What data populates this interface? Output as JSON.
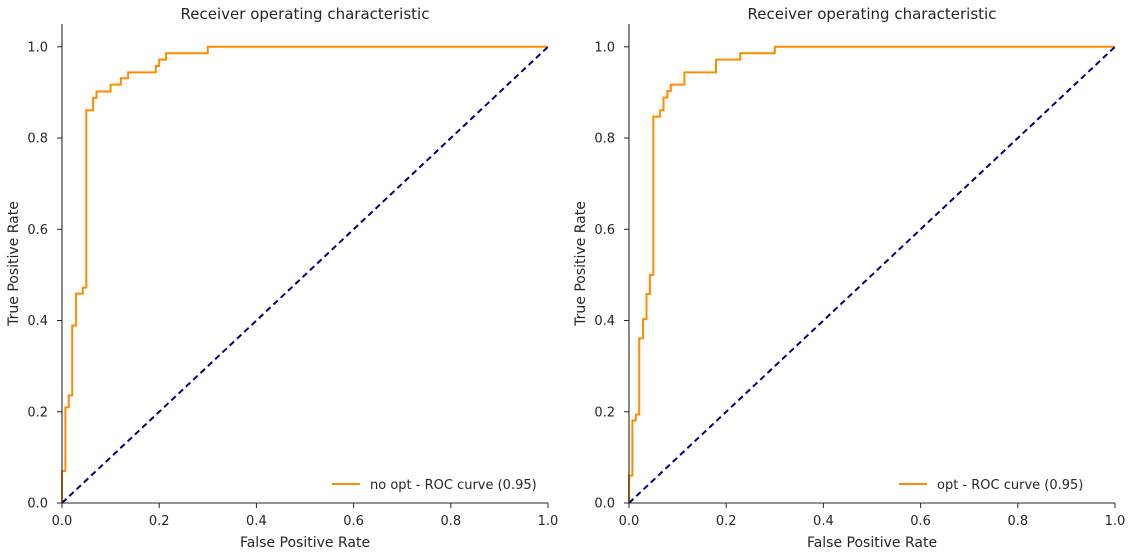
{
  "colors": {
    "roc": "#ff8c00",
    "diagonal": "#000080",
    "axes": "#262626"
  },
  "chart_data": [
    {
      "type": "line",
      "title": "Receiver operating characteristic",
      "xlabel": "False Positive Rate",
      "ylabel": "True Positive Rate",
      "xlim": [
        0.0,
        1.0
      ],
      "ylim": [
        0.0,
        1.05
      ],
      "xticks": [
        0.0,
        0.2,
        0.4,
        0.6,
        0.8,
        1.0
      ],
      "yticks": [
        0.0,
        0.2,
        0.4,
        0.6,
        0.8,
        1.0
      ],
      "xtick_labels": [
        "0.0",
        "0.2",
        "0.4",
        "0.6",
        "0.8",
        "1.0"
      ],
      "ytick_labels": [
        "0.0",
        "0.2",
        "0.4",
        "0.6",
        "0.8",
        "1.0"
      ],
      "grid": false,
      "legend_position": "lower-right",
      "series": [
        {
          "name": "no opt - ROC curve (0.95)",
          "color": "#ff8c00",
          "style": "solid",
          "x": [
            0.0,
            0.0,
            0.007,
            0.007,
            0.014,
            0.014,
            0.021,
            0.021,
            0.029,
            0.029,
            0.043,
            0.043,
            0.05,
            0.05,
            0.064,
            0.064,
            0.071,
            0.071,
            0.1,
            0.1,
            0.121,
            0.121,
            0.136,
            0.136,
            0.193,
            0.193,
            0.2,
            0.2,
            0.214,
            0.214,
            0.3,
            0.3,
            1.0
          ],
          "y": [
            0.0,
            0.07,
            0.07,
            0.21,
            0.21,
            0.236,
            0.236,
            0.389,
            0.389,
            0.459,
            0.459,
            0.472,
            0.472,
            0.861,
            0.861,
            0.888,
            0.888,
            0.902,
            0.902,
            0.917,
            0.917,
            0.931,
            0.931,
            0.944,
            0.944,
            0.958,
            0.958,
            0.972,
            0.972,
            0.986,
            0.986,
            1.0,
            1.0
          ]
        },
        {
          "name": "",
          "color": "#000080",
          "style": "dashed",
          "x": [
            0.0,
            1.0
          ],
          "y": [
            0.0,
            1.0
          ]
        }
      ]
    },
    {
      "type": "line",
      "title": "Receiver operating characteristic",
      "xlabel": "False Positive Rate",
      "ylabel": "True Positive Rate",
      "xlim": [
        0.0,
        1.0
      ],
      "ylim": [
        0.0,
        1.05
      ],
      "xticks": [
        0.0,
        0.2,
        0.4,
        0.6,
        0.8,
        1.0
      ],
      "yticks": [
        0.0,
        0.2,
        0.4,
        0.6,
        0.8,
        1.0
      ],
      "xtick_labels": [
        "0.0",
        "0.2",
        "0.4",
        "0.6",
        "0.8",
        "1.0"
      ],
      "ytick_labels": [
        "0.0",
        "0.2",
        "0.4",
        "0.6",
        "0.8",
        "1.0"
      ],
      "grid": false,
      "legend_position": "lower-right",
      "series": [
        {
          "name": "opt - ROC curve (0.95)",
          "color": "#ff8c00",
          "style": "solid",
          "x": [
            0.0,
            0.0,
            0.007,
            0.007,
            0.014,
            0.014,
            0.021,
            0.021,
            0.029,
            0.029,
            0.036,
            0.036,
            0.043,
            0.043,
            0.05,
            0.05,
            0.064,
            0.064,
            0.071,
            0.071,
            0.079,
            0.079,
            0.086,
            0.086,
            0.114,
            0.114,
            0.179,
            0.179,
            0.229,
            0.229,
            0.3,
            0.3,
            1.0
          ],
          "y": [
            0.0,
            0.06,
            0.06,
            0.181,
            0.181,
            0.194,
            0.194,
            0.361,
            0.361,
            0.403,
            0.403,
            0.458,
            0.458,
            0.5,
            0.5,
            0.847,
            0.847,
            0.861,
            0.861,
            0.889,
            0.889,
            0.903,
            0.903,
            0.917,
            0.917,
            0.944,
            0.944,
            0.972,
            0.972,
            0.986,
            0.986,
            1.0,
            1.0
          ]
        },
        {
          "name": "",
          "color": "#000080",
          "style": "dashed",
          "x": [
            0.0,
            1.0
          ],
          "y": [
            0.0,
            1.0
          ]
        }
      ]
    }
  ]
}
